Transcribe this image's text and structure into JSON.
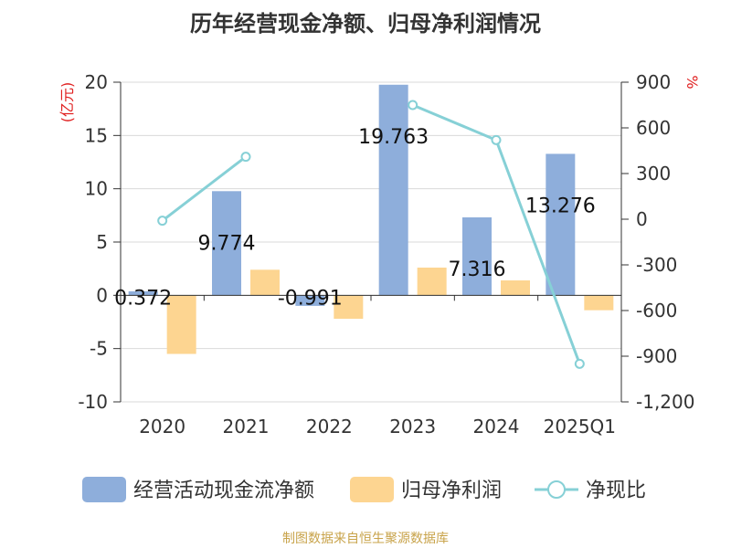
{
  "chart_data": {
    "type": "bar",
    "title": "历年经营现金净额、归母净利润情况",
    "left_axis": {
      "unit_label": "(亿元)",
      "ylim": [
        -10,
        20
      ],
      "ticks": [
        -10,
        -5,
        0,
        5,
        10,
        15,
        20
      ],
      "tick_labels": [
        "-10",
        "-5",
        "0",
        "5",
        "10",
        "15",
        "20"
      ]
    },
    "right_axis": {
      "unit_label": "%",
      "ylim": [
        -1200,
        900
      ],
      "ticks": [
        -1200,
        -900,
        -600,
        -300,
        0,
        300,
        600,
        900
      ],
      "tick_labels": [
        "-1,200",
        "-900",
        "-600",
        "-300",
        "0",
        "300",
        "600",
        "900"
      ]
    },
    "categories": [
      "2020",
      "2021",
      "2022",
      "2023",
      "2024",
      "2025Q1"
    ],
    "series": [
      {
        "name": "经营活动现金流净额",
        "kind": "bar",
        "axis": "left",
        "color": "#8eaedb",
        "values": [
          0.372,
          9.774,
          -0.991,
          19.763,
          7.316,
          13.276
        ],
        "data_labels": [
          "0.372",
          "9.774",
          "-0.991",
          "19.763",
          "7.316",
          "13.276"
        ]
      },
      {
        "name": "归母净利润",
        "kind": "bar",
        "axis": "left",
        "color": "#fdd591",
        "values": [
          -5.5,
          2.4,
          -2.2,
          2.6,
          1.4,
          -1.4
        ]
      },
      {
        "name": "净现比",
        "kind": "line",
        "axis": "right",
        "color": "#86d0d6",
        "values": [
          -10,
          410,
          null,
          750,
          520,
          -950
        ]
      }
    ],
    "legend_position": "bottom",
    "grid": true
  },
  "footer": {
    "source": "制图数据来自恒生聚源数据库"
  }
}
